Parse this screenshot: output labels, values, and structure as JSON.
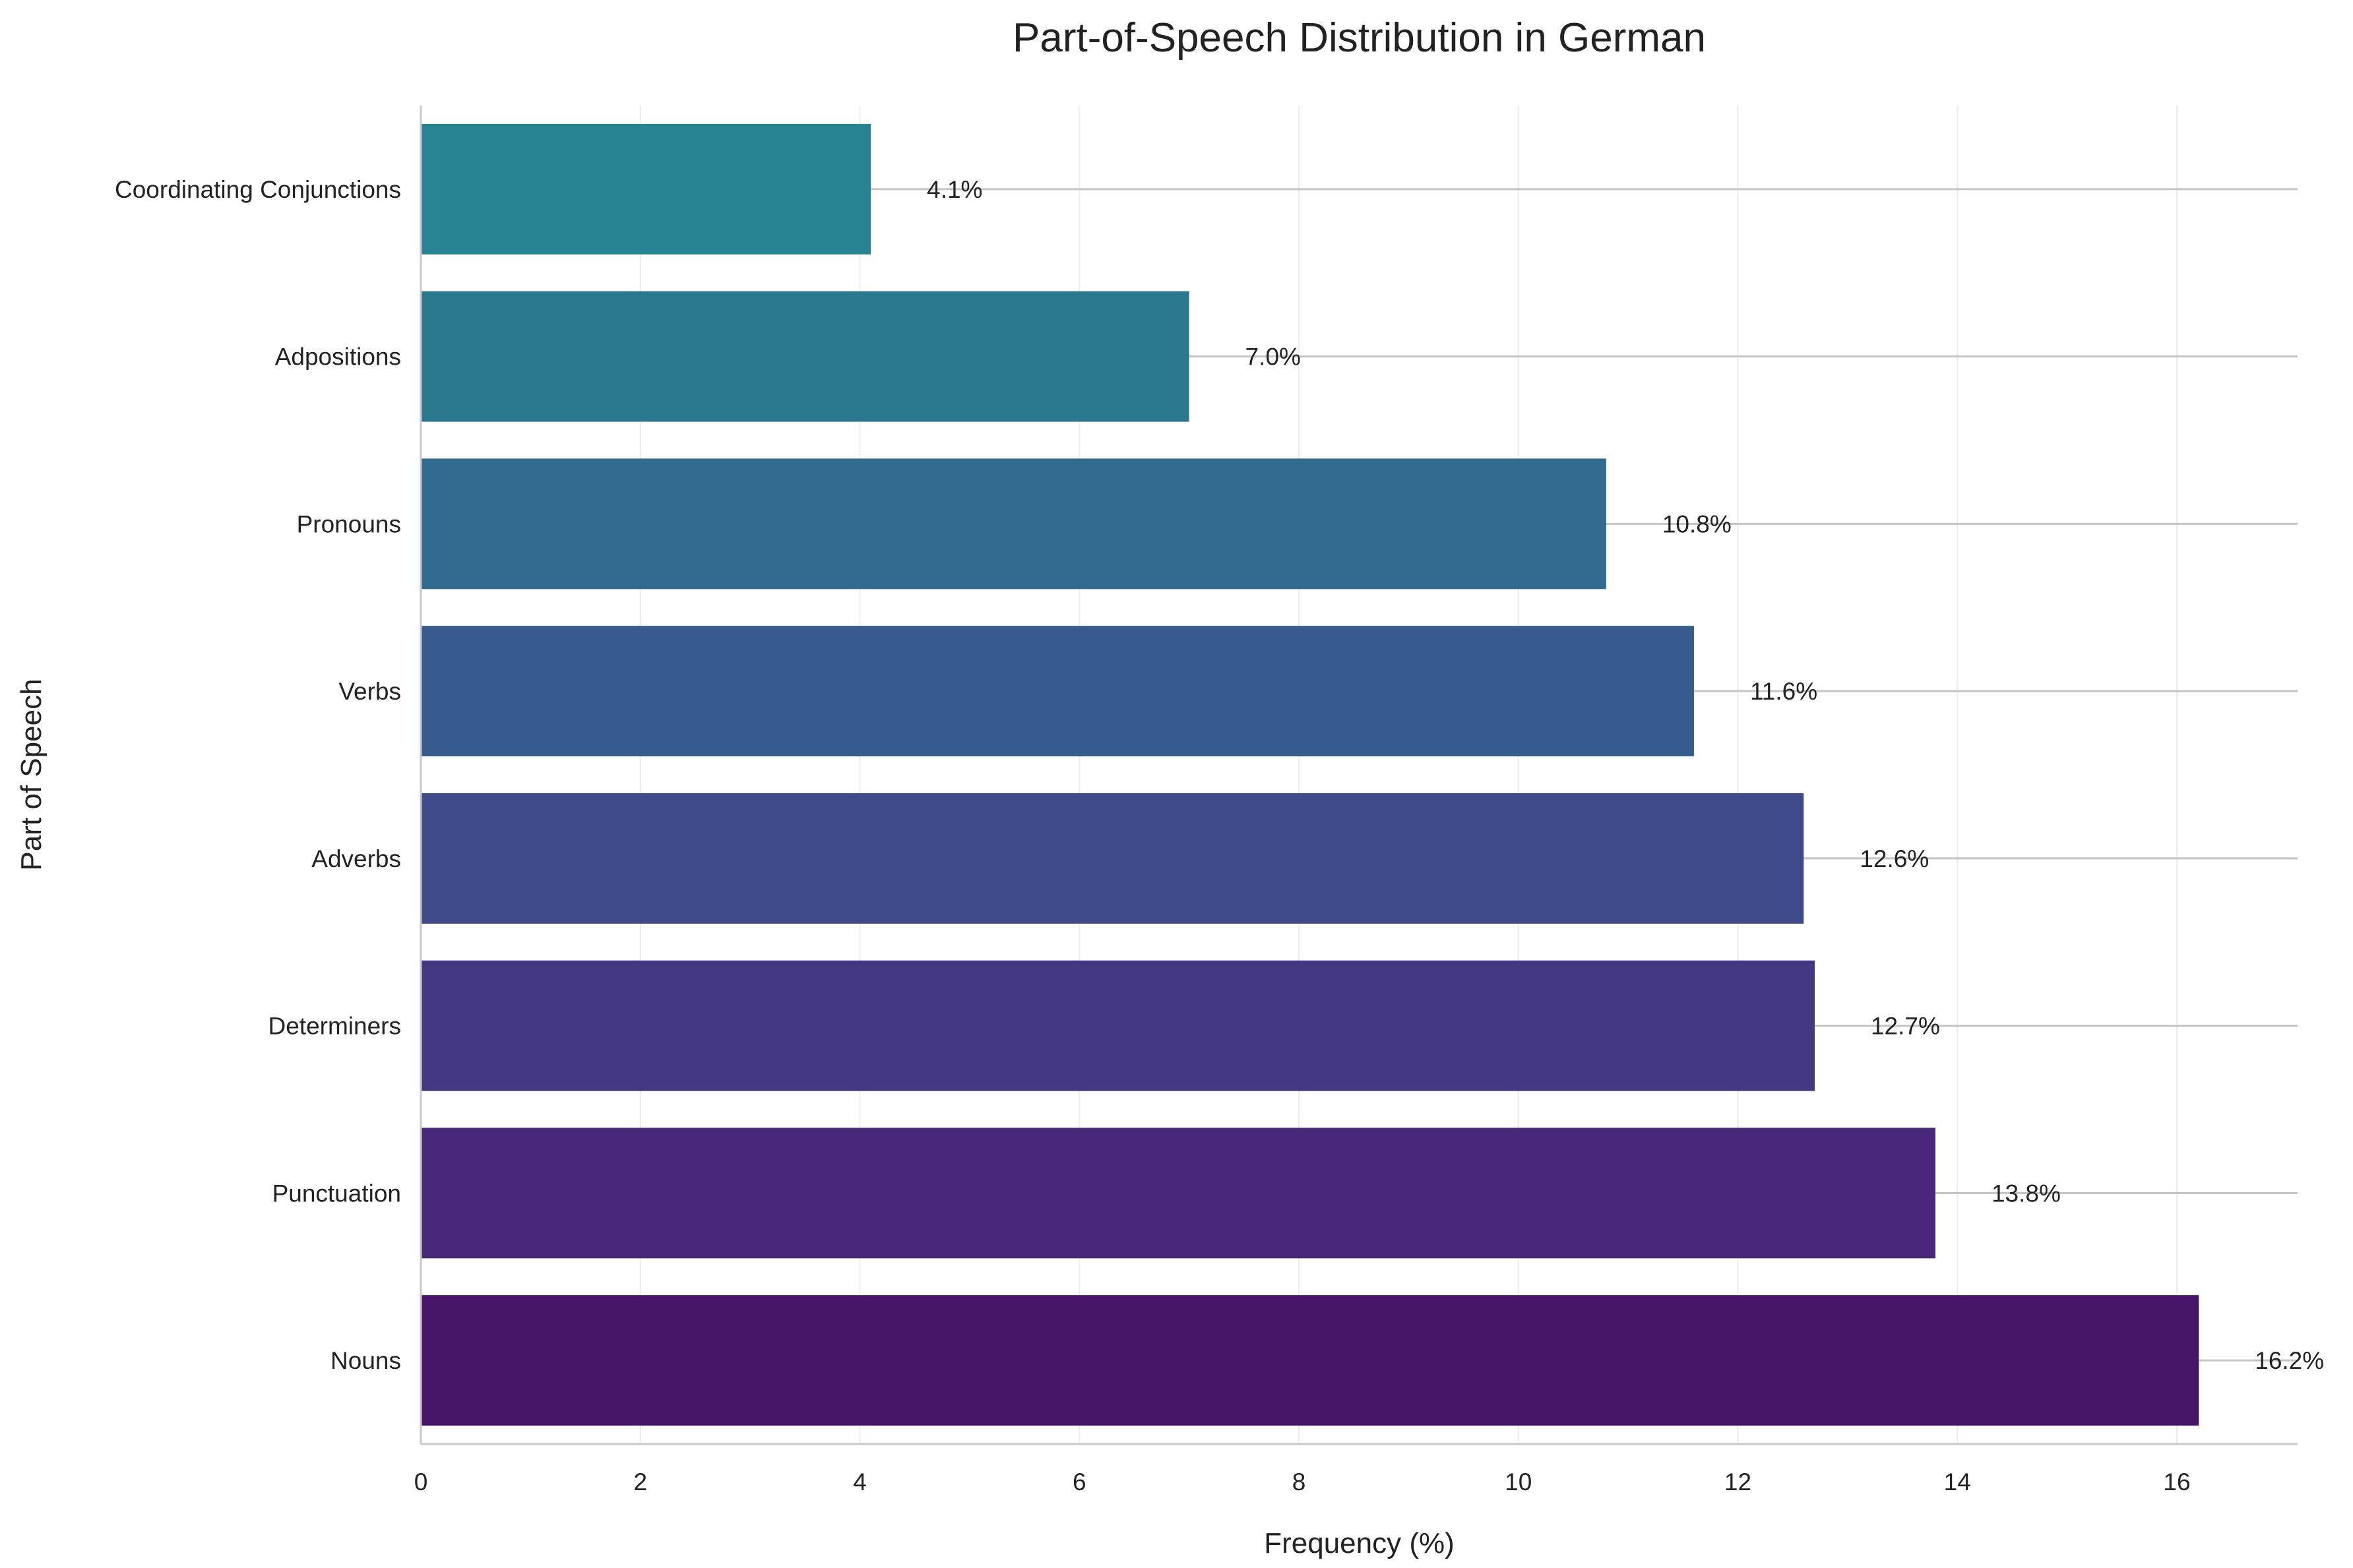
{
  "chart_data": {
    "type": "bar",
    "orientation": "horizontal",
    "title": "Part-of-Speech Distribution in German",
    "xlabel": "Frequency (%)",
    "ylabel": "Part of Speech",
    "categories": [
      "Nouns",
      "Punctuation",
      "Determiners",
      "Adverbs",
      "Verbs",
      "Pronouns",
      "Adpositions",
      "Coordinating Conjunctions"
    ],
    "values": [
      16.2,
      13.8,
      12.7,
      12.6,
      11.6,
      10.8,
      7.0,
      4.1
    ],
    "value_labels": [
      "16.2%",
      "13.8%",
      "12.7%",
      "12.6%",
      "11.6%",
      "10.8%",
      "7.0%",
      "4.1%"
    ],
    "colors": [
      "#481668",
      "#482878",
      "#453883",
      "#3e4a89",
      "#365b8c",
      "#306a8e",
      "#2b788e",
      "#26838f"
    ],
    "xlim": [
      0,
      17.1
    ],
    "xticks": [
      0,
      2,
      4,
      6,
      8,
      10,
      12,
      14,
      16
    ],
    "xtick_labels": [
      "0",
      "2",
      "4",
      "6",
      "8",
      "10",
      "12",
      "14",
      "16"
    ],
    "grid": "vertical",
    "legend": "none"
  }
}
